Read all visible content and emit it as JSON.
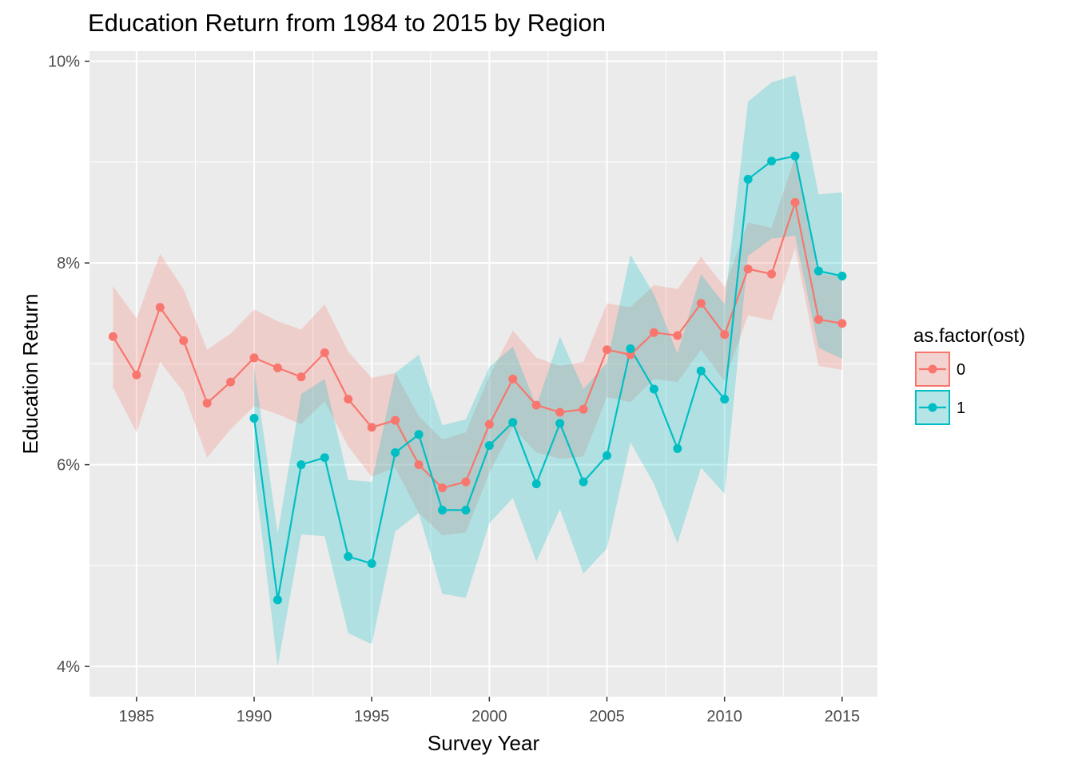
{
  "chart_data": {
    "type": "line",
    "title": "Education Return from 1984 to 2015 by Region",
    "xlabel": "Survey Year",
    "ylabel": "Education Return",
    "xlim": [
      1983,
      2016.5
    ],
    "ylim": [
      3.7,
      10.1
    ],
    "x_ticks": [
      1985,
      1990,
      1995,
      2000,
      2005,
      2010,
      2015
    ],
    "y_ticks": [
      4,
      6,
      8,
      10
    ],
    "y_tick_labels": [
      "4%",
      "6%",
      "8%",
      "10%"
    ],
    "grid": true,
    "legend": {
      "title": "as.factor(ost)",
      "position": "right",
      "entries": [
        "0",
        "1"
      ]
    },
    "series": [
      {
        "name": "0",
        "color": "#F8766D",
        "x": [
          1984,
          1985,
          1986,
          1987,
          1988,
          1989,
          1990,
          1991,
          1992,
          1993,
          1994,
          1995,
          1996,
          1997,
          1998,
          1999,
          2000,
          2001,
          2002,
          2003,
          2004,
          2005,
          2006,
          2007,
          2008,
          2009,
          2010,
          2011,
          2012,
          2013,
          2014,
          2015
        ],
        "values": [
          7.27,
          6.89,
          7.56,
          7.23,
          6.61,
          6.82,
          7.06,
          6.96,
          6.87,
          7.11,
          6.65,
          6.37,
          6.44,
          6.0,
          5.77,
          5.83,
          6.4,
          6.85,
          6.59,
          6.52,
          6.55,
          7.14,
          7.09,
          7.31,
          7.28,
          7.6,
          7.29,
          7.94,
          7.89,
          8.6,
          7.44,
          7.4
        ],
        "lower": [
          6.77,
          6.32,
          7.02,
          6.72,
          6.07,
          6.35,
          6.58,
          6.5,
          6.4,
          6.63,
          6.18,
          5.88,
          5.97,
          5.52,
          5.3,
          5.33,
          5.92,
          6.37,
          6.12,
          6.06,
          6.08,
          6.67,
          6.62,
          6.85,
          6.82,
          7.14,
          6.83,
          7.48,
          7.43,
          8.15,
          6.98,
          6.94
        ],
        "upper": [
          7.77,
          7.45,
          8.09,
          7.74,
          7.14,
          7.3,
          7.54,
          7.42,
          7.34,
          7.59,
          7.12,
          6.86,
          6.91,
          6.48,
          6.25,
          6.32,
          6.88,
          7.33,
          7.06,
          6.98,
          7.02,
          7.6,
          7.56,
          7.78,
          7.74,
          8.06,
          7.76,
          8.4,
          8.35,
          9.05,
          7.9,
          7.86
        ]
      },
      {
        "name": "1",
        "color": "#00BFC4",
        "x": [
          1990,
          1991,
          1992,
          1993,
          1994,
          1995,
          1996,
          1997,
          1998,
          1999,
          2000,
          2001,
          2002,
          2003,
          2004,
          2005,
          2006,
          2007,
          2008,
          2009,
          2010,
          2011,
          2012,
          2013,
          2014,
          2015
        ],
        "values": [
          6.46,
          4.66,
          6.0,
          6.07,
          5.09,
          5.02,
          6.12,
          6.3,
          5.55,
          5.55,
          6.19,
          6.42,
          5.81,
          6.41,
          5.83,
          6.09,
          7.15,
          6.75,
          6.16,
          6.93,
          6.65,
          8.83,
          9.01,
          9.06,
          7.92,
          7.87
        ],
        "lower": [
          5.95,
          4.0,
          5.31,
          5.29,
          4.33,
          4.22,
          5.34,
          5.52,
          4.72,
          4.68,
          5.42,
          5.67,
          5.04,
          5.56,
          4.92,
          5.17,
          6.22,
          5.81,
          5.22,
          5.97,
          5.71,
          8.07,
          8.24,
          8.27,
          7.16,
          7.05
        ],
        "upper": [
          6.97,
          5.32,
          6.7,
          6.85,
          5.85,
          5.83,
          6.91,
          7.09,
          6.39,
          6.45,
          6.97,
          7.17,
          6.58,
          7.27,
          6.75,
          7.01,
          8.08,
          7.69,
          7.1,
          7.89,
          7.59,
          9.6,
          9.79,
          9.86,
          8.68,
          8.7
        ]
      }
    ]
  }
}
